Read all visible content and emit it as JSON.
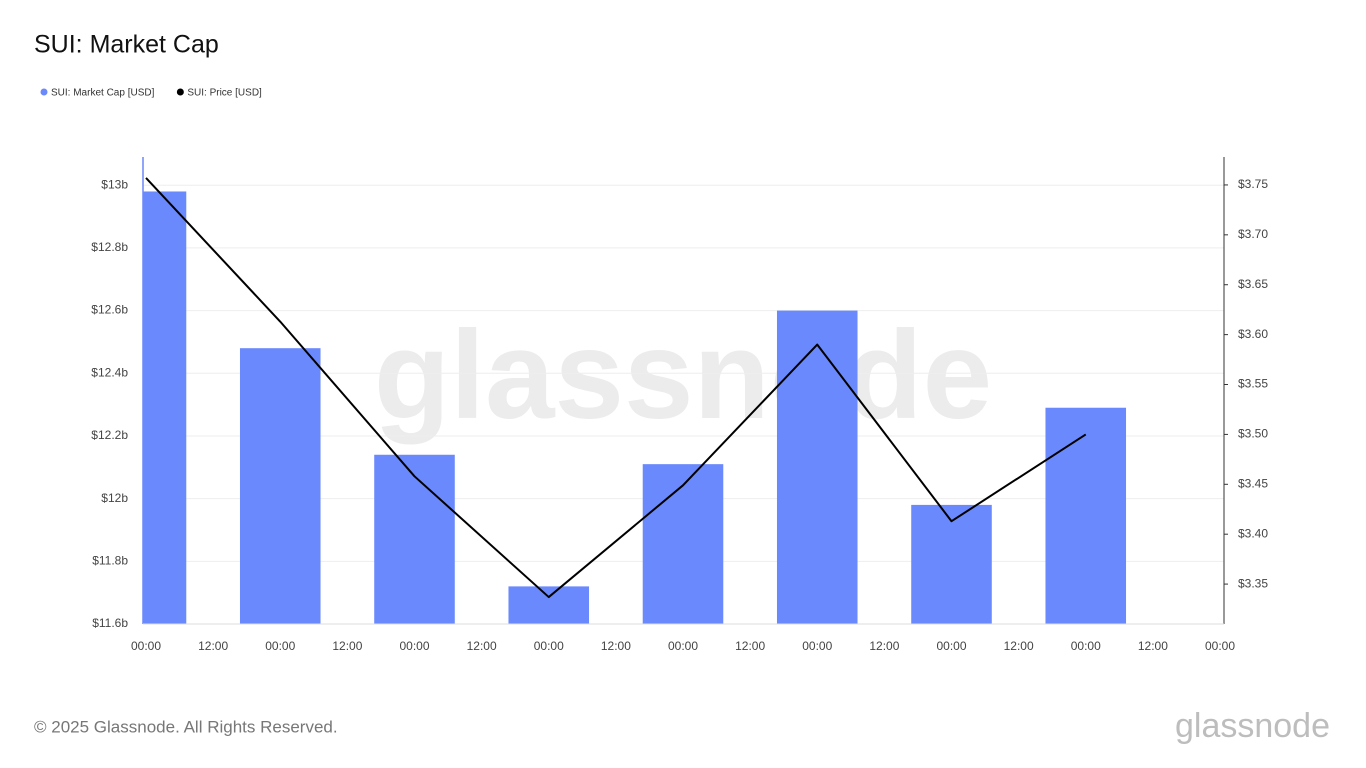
{
  "chart_data": {
    "type": "bar-line",
    "title": "SUI: Market Cap",
    "watermark": "glassnode",
    "copyright": "© 2025 Glassnode. All Rights Reserved.",
    "brand": "glassnode",
    "categories": [
      "00:00",
      "00:00",
      "00:00",
      "00:00",
      "00:00",
      "00:00",
      "00:00",
      "00:00",
      "00:00"
    ],
    "x_minor_labels": [
      "12:00",
      "12:00",
      "12:00",
      "12:00",
      "12:00",
      "12:00",
      "12:00",
      "12:00"
    ],
    "series": [
      {
        "name": "SUI: Market Cap [USD]",
        "color": "#6a89fc",
        "type": "bar",
        "axis": "y",
        "values": [
          12.98,
          12.48,
          12.14,
          11.72,
          12.11,
          12.6,
          11.98,
          12.29,
          null
        ]
      },
      {
        "name": "SUI: Price [USD]",
        "color": "#000000",
        "type": "line",
        "axis": "y2",
        "values": [
          3.757,
          3.613,
          3.458,
          3.337,
          3.449,
          3.59,
          3.413,
          3.5,
          null
        ]
      }
    ],
    "ylim": [
      11.6,
      13.09
    ],
    "yticks": [
      {
        "value": 11.6,
        "label": "$11.6b"
      },
      {
        "value": 11.8,
        "label": "$11.8b"
      },
      {
        "value": 12,
        "label": "$12b"
      },
      {
        "value": 12.2,
        "label": "$12.2b"
      },
      {
        "value": 12.4,
        "label": "$12.4b"
      },
      {
        "value": 12.6,
        "label": "$12.6b"
      },
      {
        "value": 12.8,
        "label": "$12.8b"
      },
      {
        "value": 13,
        "label": "$13b"
      }
    ],
    "y2lim": [
      3.31,
      3.778
    ],
    "y2ticks": [
      {
        "value": 3.35,
        "label": "$3.35"
      },
      {
        "value": 3.4,
        "label": "$3.40"
      },
      {
        "value": 3.45,
        "label": "$3.45"
      },
      {
        "value": 3.5,
        "label": "$3.50"
      },
      {
        "value": 3.55,
        "label": "$3.55"
      },
      {
        "value": 3.6,
        "label": "$3.60"
      },
      {
        "value": 3.65,
        "label": "$3.65"
      },
      {
        "value": 3.7,
        "label": "$3.70"
      },
      {
        "value": 3.75,
        "label": "$3.75"
      }
    ],
    "grid": true
  }
}
